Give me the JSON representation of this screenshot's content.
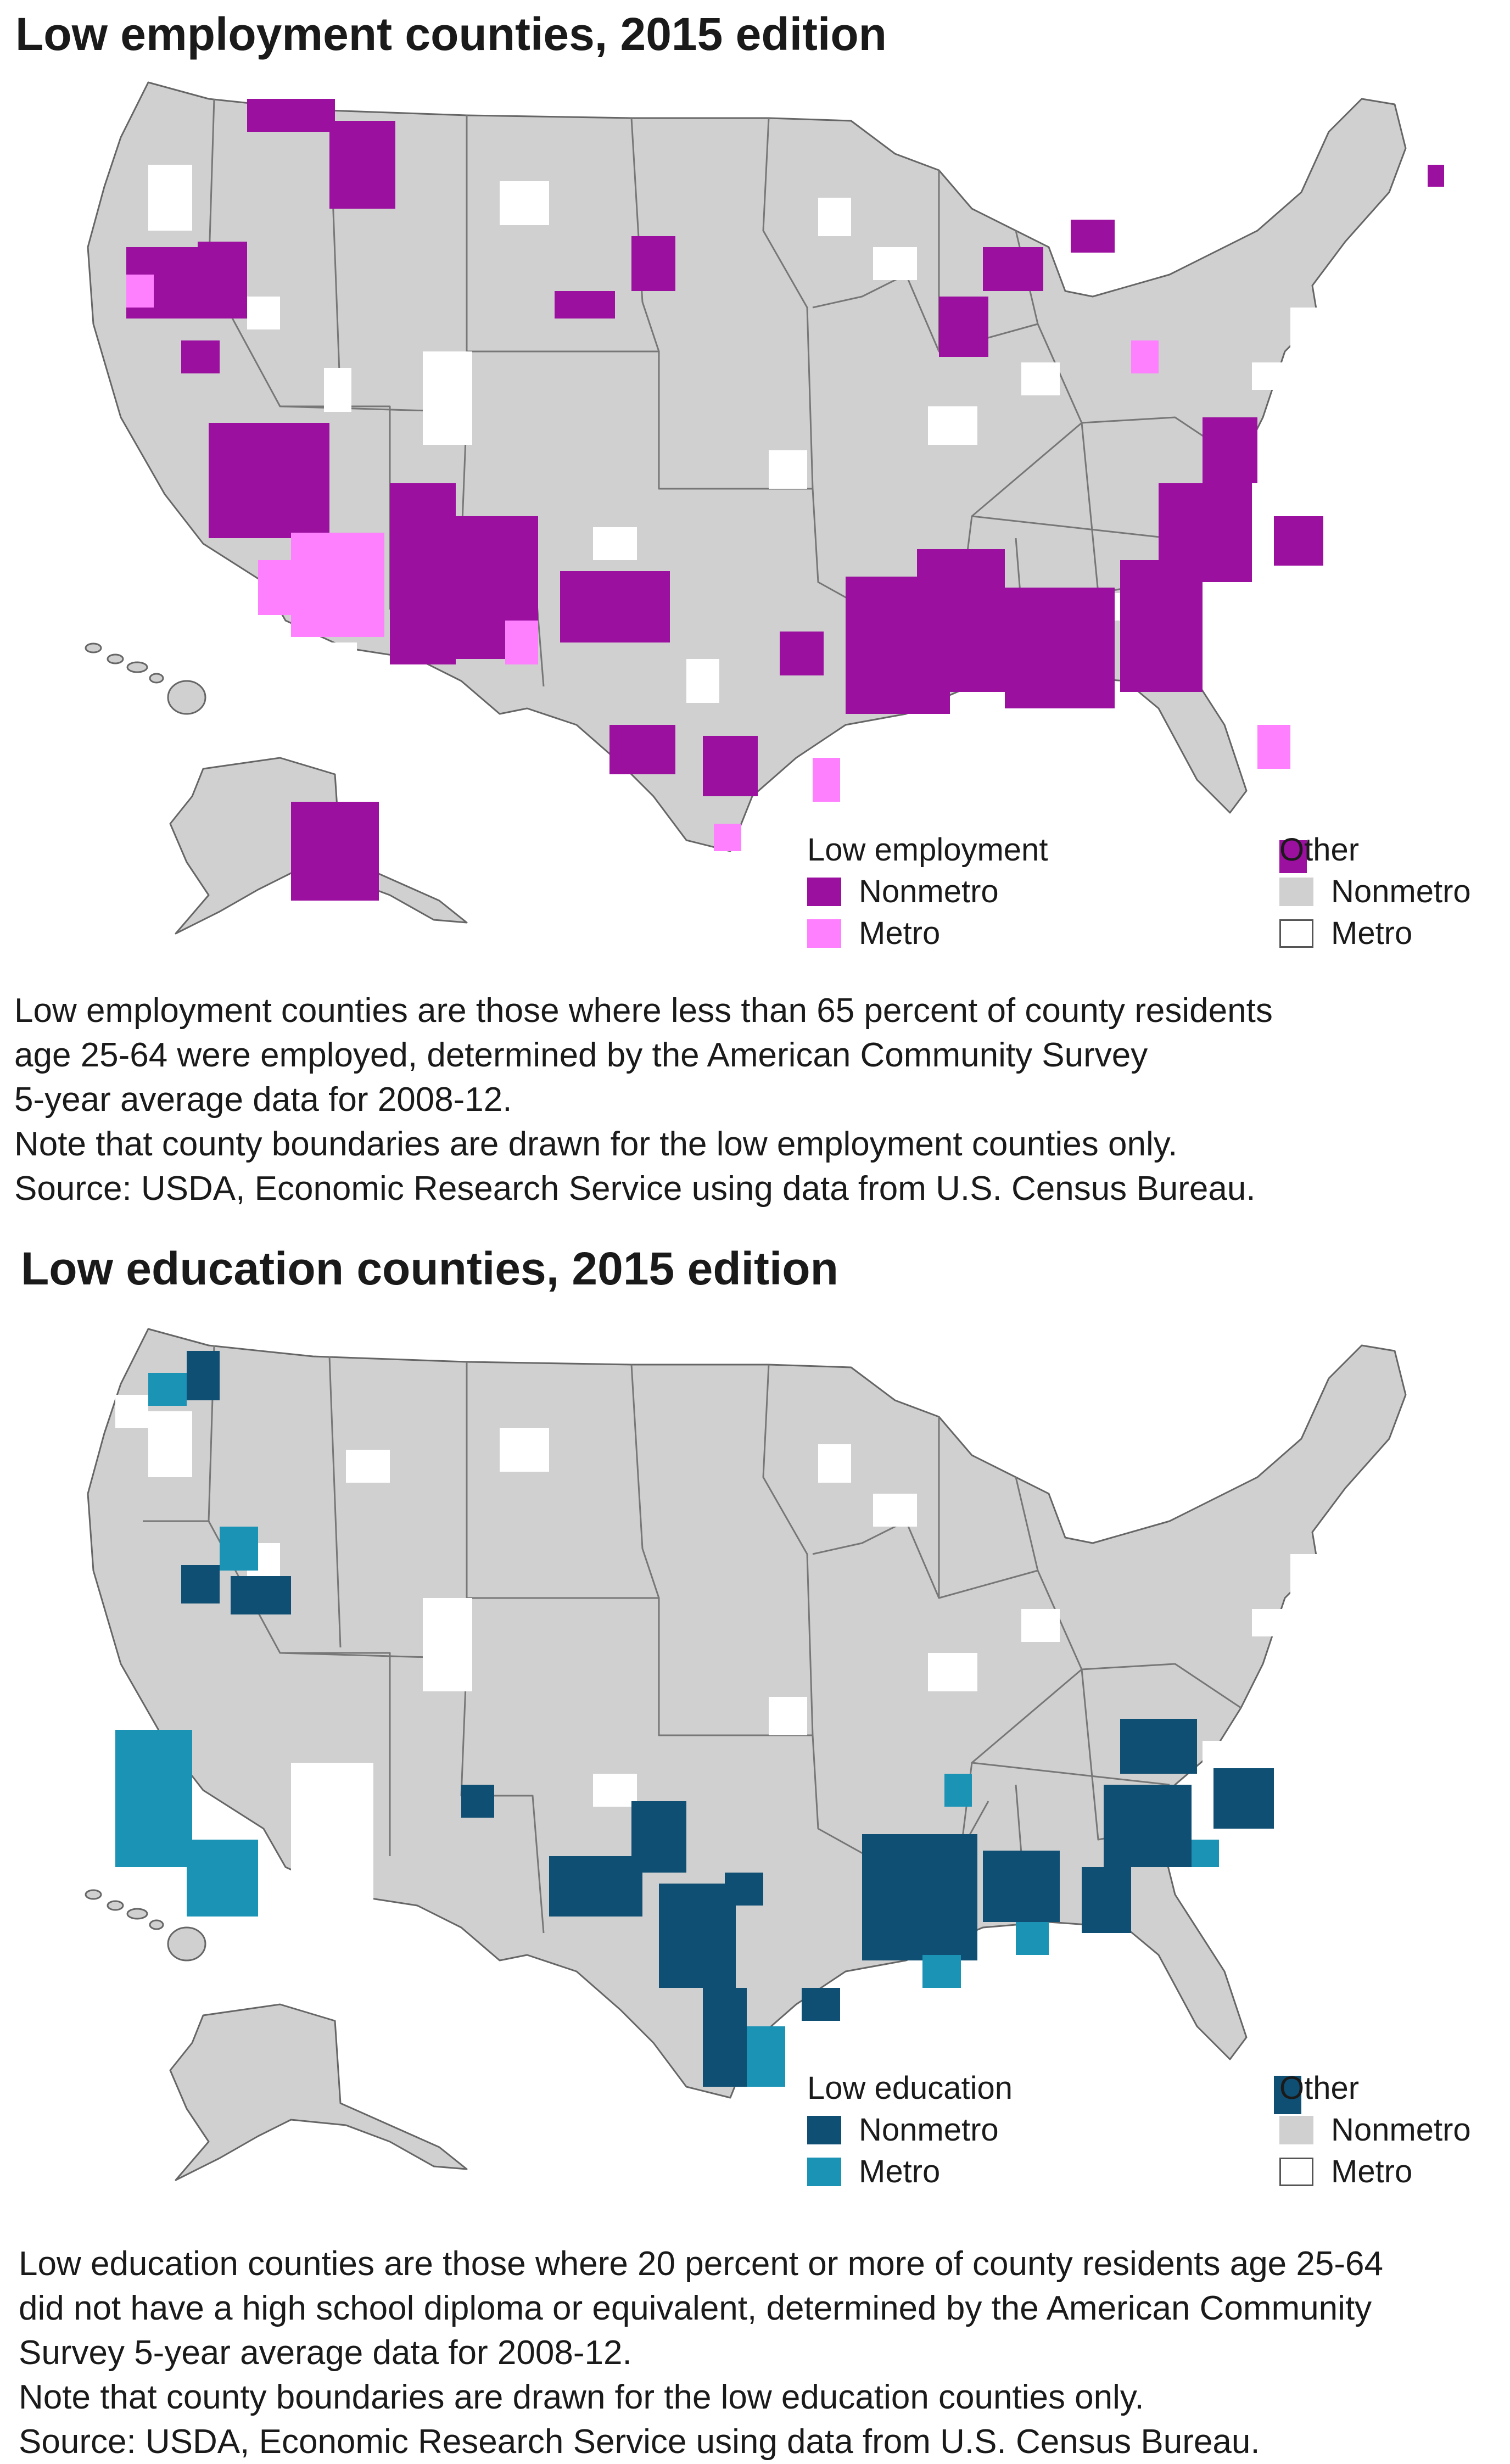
{
  "maps": [
    {
      "title": "Low employment counties, 2015 edition",
      "legend_primary": {
        "heading": "Low employment",
        "items": [
          {
            "label": "Nonmetro",
            "color": "#9b109f"
          },
          {
            "label": "Metro",
            "color": "#ff80ff"
          }
        ]
      },
      "legend_other": {
        "heading": "Other",
        "items": [
          {
            "label": "Nonmetro",
            "color": "#d0d0d0"
          },
          {
            "label": "Metro",
            "color": "#ffffff"
          }
        ]
      },
      "note": "Low employment counties are those where less than 65 percent of county residents\nage 25-64 were employed, determined by the American Community Survey\n5-year average data for 2008-12.\nNote that county boundaries are drawn for the low employment counties only.\nSource: USDA, Economic Research Service using data from U.S. Census Bureau."
    },
    {
      "title": "Low education counties, 2015 edition",
      "legend_primary": {
        "heading": "Low education",
        "items": [
          {
            "label": "Nonmetro",
            "color": "#0f4f73"
          },
          {
            "label": "Metro",
            "color": "#1b93b5"
          }
        ]
      },
      "legend_other": {
        "heading": "Other",
        "items": [
          {
            "label": "Nonmetro",
            "color": "#d0d0d0"
          },
          {
            "label": "Metro",
            "color": "#ffffff"
          }
        ]
      },
      "note": "Low education counties are those where 20 percent or more of county residents age 25-64\ndid not have a high school diploma or equivalent, determined by the American Community\nSurvey 5-year average data for 2008-12.\nNote that county boundaries are drawn for the low education counties only.\nSource: USDA, Economic Research Service using data from U.S. Census Bureau."
    }
  ]
}
